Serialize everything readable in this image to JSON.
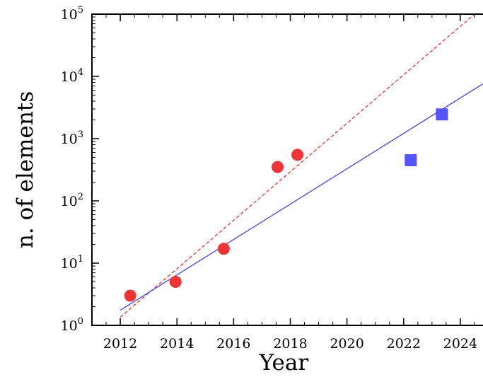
{
  "chart_data": {
    "type": "scatter",
    "xlabel": "Year",
    "ylabel": "n. of elements",
    "xlim": [
      2011.0,
      2024.8
    ],
    "ylim": [
      1,
      100000
    ],
    "y_scale": "log",
    "x_ticks": [
      {
        "value": 2012,
        "label": "2012"
      },
      {
        "value": 2014,
        "label": "2014"
      },
      {
        "value": 2016,
        "label": "2016"
      },
      {
        "value": 2018,
        "label": "2018"
      },
      {
        "value": 2020,
        "label": "2020"
      },
      {
        "value": 2022,
        "label": "2022"
      },
      {
        "value": 2024,
        "label": "2024"
      }
    ],
    "y_ticks": [
      {
        "value": 1,
        "base": "10",
        "exp": "0"
      },
      {
        "value": 10,
        "base": "10",
        "exp": "1"
      },
      {
        "value": 100,
        "base": "10",
        "exp": "2"
      },
      {
        "value": 1000,
        "base": "10",
        "exp": "3"
      },
      {
        "value": 10000,
        "base": "10",
        "exp": "4"
      },
      {
        "value": 100000,
        "base": "10",
        "exp": "5"
      }
    ],
    "grid": false,
    "series": [
      {
        "marker": "circle",
        "color": "#ee3535",
        "points": [
          {
            "x": 2012.35,
            "y": 3
          },
          {
            "x": 2013.95,
            "y": 5
          },
          {
            "x": 2015.65,
            "y": 17
          },
          {
            "x": 2017.55,
            "y": 350
          },
          {
            "x": 2018.25,
            "y": 550
          }
        ]
      },
      {
        "marker": "square",
        "color": "#5555ff",
        "points": [
          {
            "x": 2022.25,
            "y": 450
          },
          {
            "x": 2023.35,
            "y": 2450
          }
        ]
      }
    ],
    "fits": [
      {
        "style": "dashed",
        "color": "#ee3535",
        "from": {
          "x": 2012.0,
          "y": 1.35
        },
        "to": {
          "x": 2024.5,
          "y": 100000
        }
      },
      {
        "style": "solid",
        "color": "#4444ee",
        "from": {
          "x": 2012.0,
          "y": 1.75
        },
        "to": {
          "x": 2024.8,
          "y": 7600
        }
      }
    ]
  }
}
